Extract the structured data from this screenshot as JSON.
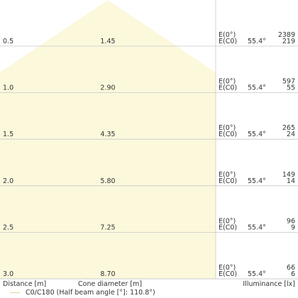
{
  "rows": [
    {
      "distance": "0.5",
      "diameter": "1.45",
      "e_label": "E(0°)",
      "ec_label": "E(C0)",
      "angle": "55.4°",
      "e_value": "2389",
      "ec_value": "219"
    },
    {
      "distance": "1.0",
      "diameter": "2.90",
      "e_label": "E(0°)",
      "ec_label": "E(C0)",
      "angle": "55.4°",
      "e_value": "597",
      "ec_value": "55"
    },
    {
      "distance": "1.5",
      "diameter": "4.35",
      "e_label": "E(0°)",
      "ec_label": "E(C0)",
      "angle": "55.4°",
      "e_value": "265",
      "ec_value": "24"
    },
    {
      "distance": "2.0",
      "diameter": "5.80",
      "e_label": "E(0°)",
      "ec_label": "E(C0)",
      "angle": "55.4°",
      "e_value": "149",
      "ec_value": "14"
    },
    {
      "distance": "2.5",
      "diameter": "7.25",
      "e_label": "E(0°)",
      "ec_label": "E(C0)",
      "angle": "55.4°",
      "e_value": "96",
      "ec_value": "9"
    },
    {
      "distance": "3.0",
      "diameter": "8.70",
      "e_label": "E(0°)",
      "ec_label": "E(C0)",
      "angle": "55.4°",
      "e_value": "66",
      "ec_value": "6"
    }
  ],
  "axis": {
    "distance_label": "Distance [m]",
    "diameter_label": "Cone diameter [m]",
    "illuminance_label": "Illuminance [lx]"
  },
  "legend": {
    "text": "C0/C180 (Half beam angle [°]: 110.8°)",
    "color": "#e6d49a"
  },
  "colors": {
    "cone_fill": "#fcf8dc",
    "grid": "#c8c8c8"
  }
}
